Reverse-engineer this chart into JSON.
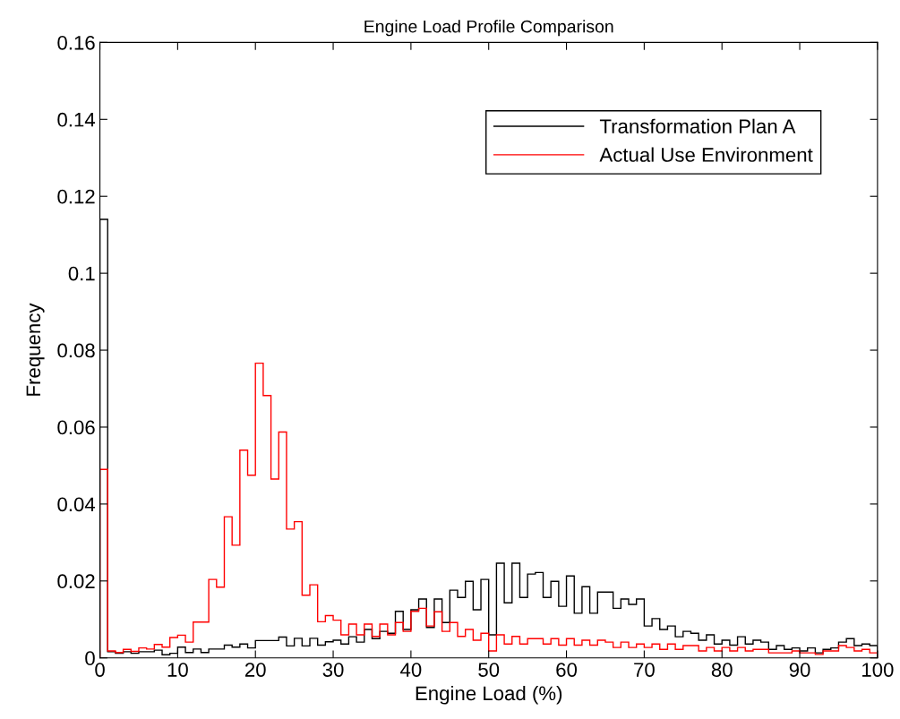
{
  "chart_data": {
    "type": "histogram",
    "title": "Engine Load Profile Comparison",
    "xlabel": "Engine Load (%)",
    "ylabel": "Frequency",
    "bins": [
      0,
      1,
      2,
      3,
      4,
      5,
      6,
      7,
      8,
      9,
      10,
      11,
      12,
      13,
      14,
      15,
      16,
      17,
      18,
      19,
      20,
      21,
      22,
      23,
      24,
      25,
      26,
      27,
      28,
      29,
      30,
      31,
      32,
      33,
      34,
      35,
      36,
      37,
      38,
      39,
      40,
      41,
      42,
      43,
      44,
      45,
      46,
      47,
      48,
      49,
      50,
      51,
      52,
      53,
      54,
      55,
      56,
      57,
      58,
      59,
      60,
      61,
      62,
      63,
      64,
      65,
      66,
      67,
      68,
      69,
      70,
      71,
      72,
      73,
      74,
      75,
      76,
      77,
      78,
      79,
      80,
      81,
      82,
      83,
      84,
      85,
      86,
      87,
      88,
      89,
      90,
      91,
      92,
      93,
      94,
      95,
      96,
      97,
      98,
      99,
      100
    ],
    "series": [
      {
        "name": "Transformation Plan A",
        "color": "#000000",
        "values": [
          0.114,
          0.0016,
          0.0012,
          0.0016,
          0.0012,
          0.0016,
          0.0016,
          0.002,
          0.0008,
          0.0012,
          0.0028,
          0.0014,
          0.0023,
          0.0014,
          0.0023,
          0.0023,
          0.0033,
          0.0028,
          0.0036,
          0.0026,
          0.0045,
          0.0045,
          0.0045,
          0.0054,
          0.0031,
          0.0051,
          0.0031,
          0.0051,
          0.0033,
          0.0042,
          0.0046,
          0.0036,
          0.0055,
          0.0041,
          0.0074,
          0.005,
          0.0069,
          0.0064,
          0.0121,
          0.0074,
          0.0125,
          0.0153,
          0.0079,
          0.0153,
          0.0092,
          0.0176,
          0.0157,
          0.0199,
          0.0125,
          0.0204,
          0.006,
          0.0246,
          0.0143,
          0.0246,
          0.0157,
          0.0218,
          0.0222,
          0.0157,
          0.0199,
          0.0134,
          0.0213,
          0.0116,
          0.0185,
          0.0116,
          0.0171,
          0.0171,
          0.0129,
          0.0153,
          0.0139,
          0.0153,
          0.0083,
          0.0102,
          0.0074,
          0.0083,
          0.0055,
          0.0069,
          0.0064,
          0.0046,
          0.006,
          0.0036,
          0.0046,
          0.0033,
          0.0055,
          0.0036,
          0.0046,
          0.0041,
          0.0022,
          0.0032,
          0.0022,
          0.0026,
          0.0018,
          0.0026,
          0.0013,
          0.0022,
          0.0026,
          0.0041,
          0.005,
          0.0032,
          0.0036,
          0.0032
        ]
      },
      {
        "name": "Actual Use Environment",
        "color": "#ff0000",
        "values": [
          0.049,
          0.0018,
          0.0014,
          0.0022,
          0.0017,
          0.0026,
          0.0023,
          0.0035,
          0.0028,
          0.0053,
          0.0059,
          0.0041,
          0.0093,
          0.0093,
          0.0204,
          0.0184,
          0.0367,
          0.0293,
          0.054,
          0.0475,
          0.0766,
          0.0682,
          0.0465,
          0.0587,
          0.0335,
          0.0354,
          0.0163,
          0.019,
          0.0094,
          0.011,
          0.0098,
          0.006,
          0.0088,
          0.006,
          0.0088,
          0.0056,
          0.0088,
          0.006,
          0.0092,
          0.0069,
          0.0121,
          0.0129,
          0.0083,
          0.012,
          0.0069,
          0.0092,
          0.0056,
          0.0074,
          0.0046,
          0.0064,
          0.0018,
          0.006,
          0.0036,
          0.0056,
          0.0036,
          0.005,
          0.005,
          0.0036,
          0.005,
          0.0033,
          0.005,
          0.0033,
          0.0046,
          0.0033,
          0.0046,
          0.0041,
          0.0027,
          0.0041,
          0.0027,
          0.0036,
          0.0027,
          0.0036,
          0.0022,
          0.0036,
          0.0022,
          0.0032,
          0.0032,
          0.0018,
          0.0027,
          0.0018,
          0.0027,
          0.0018,
          0.0027,
          0.0018,
          0.0022,
          0.0022,
          0.0013,
          0.0013,
          0.0013,
          0.0018,
          0.0013,
          0.0013,
          0.0009,
          0.0018,
          0.0018,
          0.0032,
          0.0027,
          0.0018,
          0.0022,
          0.0013
        ]
      }
    ],
    "xlim": [
      0,
      100
    ],
    "xticks": [
      0,
      10,
      20,
      30,
      40,
      50,
      60,
      70,
      80,
      90,
      100
    ],
    "ylim": [
      0,
      0.16
    ],
    "yticks": [
      0,
      0.02,
      0.04,
      0.06,
      0.08,
      0.1,
      0.12,
      0.14,
      0.16
    ],
    "grid": false,
    "legend": "top right"
  }
}
